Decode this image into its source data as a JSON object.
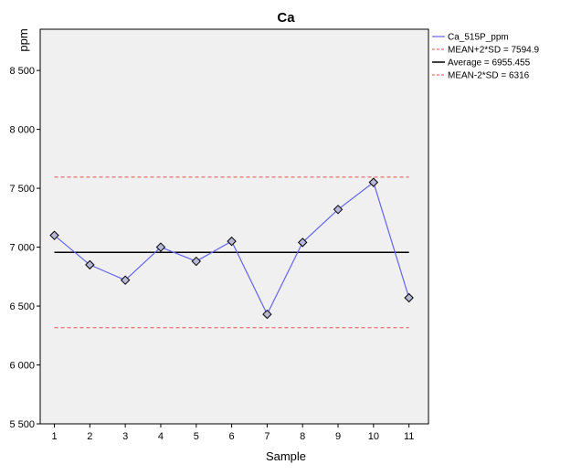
{
  "chart_data": {
    "type": "line",
    "title": "Ca",
    "xlabel": "Sample",
    "ylabel": "ppm",
    "x": [
      1,
      2,
      3,
      4,
      5,
      6,
      7,
      8,
      9,
      10,
      11
    ],
    "x_ticks": [
      "1",
      "2",
      "3",
      "4",
      "5",
      "6",
      "7",
      "8",
      "9",
      "10",
      "11"
    ],
    "y_ticks": [
      "5 500",
      "6 000",
      "6 500",
      "7 000",
      "7 500",
      "8 000",
      "8 500"
    ],
    "y_tick_values": [
      5500,
      6000,
      6500,
      7000,
      7500,
      8000,
      8500
    ],
    "ylim": [
      5500,
      8850
    ],
    "xlim": [
      0.6,
      11.55
    ],
    "series": [
      {
        "name": "Ca_515P_ppm",
        "values": [
          7100,
          6850,
          6720,
          7000,
          6880,
          7050,
          6430,
          7040,
          7320,
          7550,
          6570
        ],
        "color": "#6464f0",
        "marker": "diamond"
      }
    ],
    "reference_lines": [
      {
        "name": "MEAN+2*SD = 7594.9",
        "value": 7594.9,
        "color": "#e05050",
        "style": "dashed"
      },
      {
        "name": "Average = 6955.455",
        "value": 6955.455,
        "color": "#000000",
        "style": "solid"
      },
      {
        "name": "MEAN-2*SD = 6316",
        "value": 6316,
        "color": "#e05050",
        "style": "dashed"
      }
    ],
    "grid": false,
    "legend_position": "right",
    "plot_background": "#f0f0f0"
  }
}
